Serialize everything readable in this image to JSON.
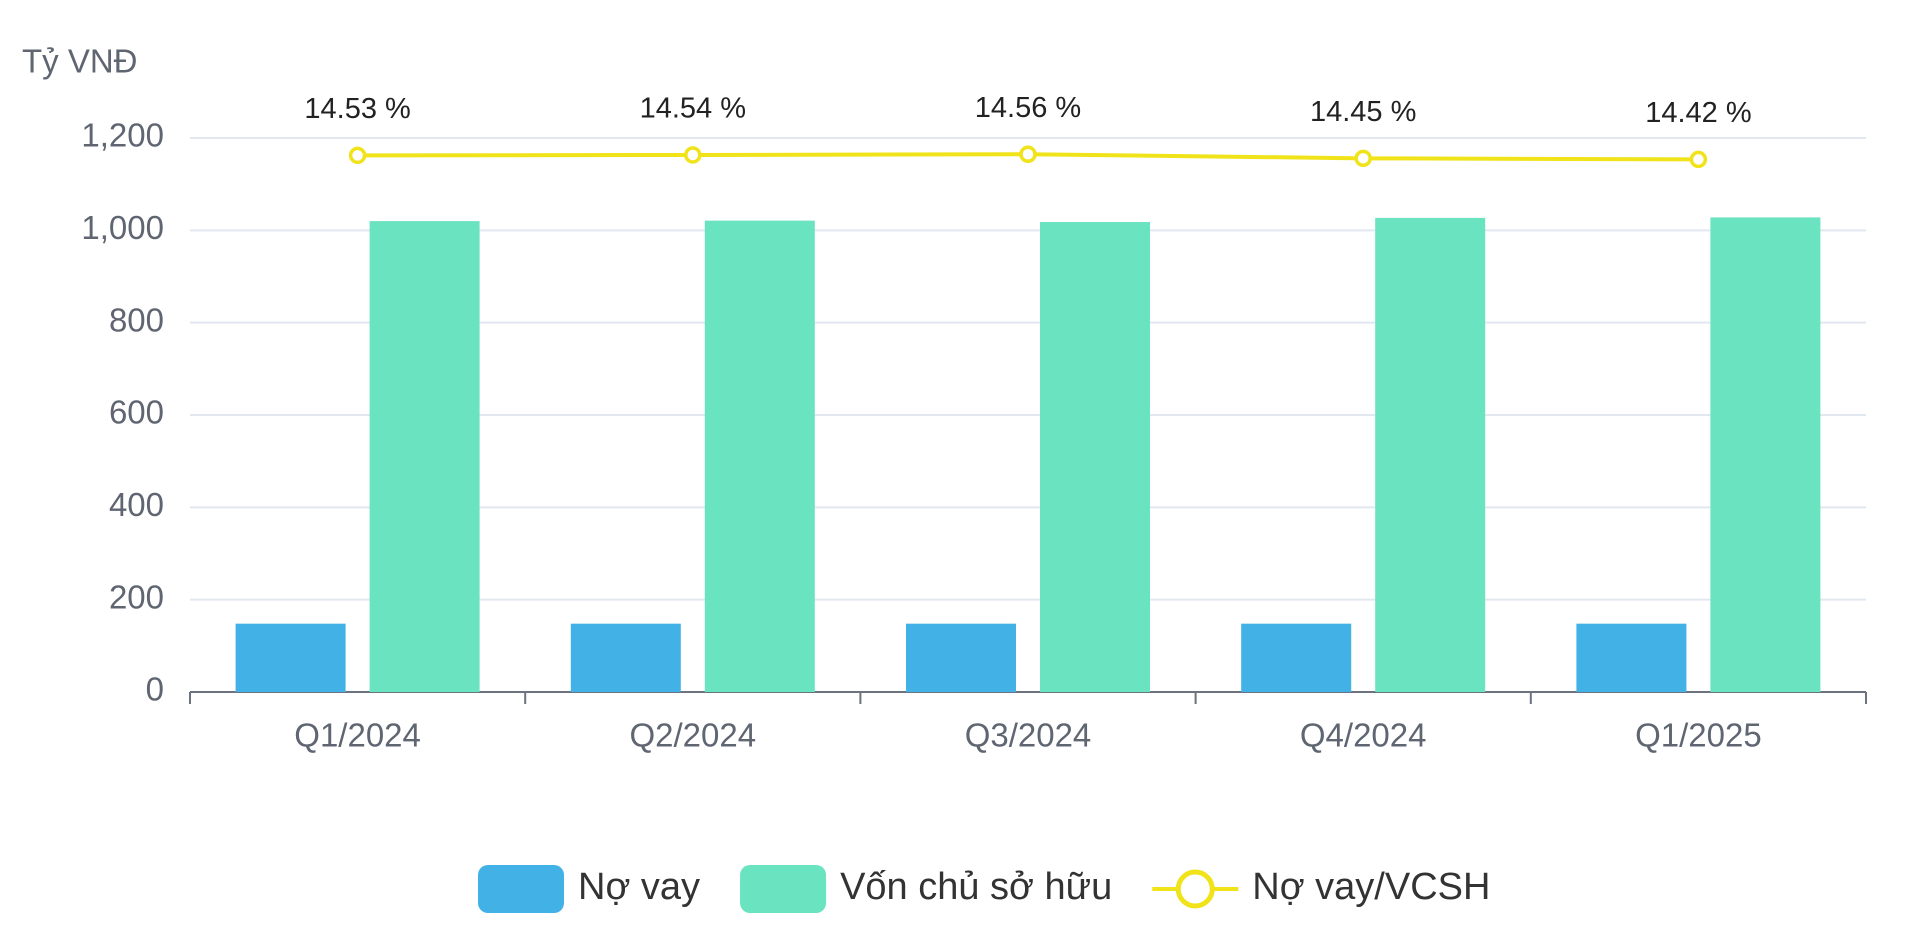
{
  "chart_data": {
    "type": "bar",
    "ylabel": "Tỷ VNĐ",
    "categories": [
      "Q1/2024",
      "Q2/2024",
      "Q3/2024",
      "Q4/2024",
      "Q1/2025"
    ],
    "series": [
      {
        "name": "Nợ vay",
        "type": "bar",
        "color": "#41b1e6",
        "values": [
          148,
          148,
          148,
          148,
          148
        ]
      },
      {
        "name": "Vốn chủ sở hữu",
        "type": "bar",
        "color": "#6ae3c0",
        "values": [
          1020,
          1021,
          1018,
          1027,
          1028
        ]
      },
      {
        "name": "Nợ vay/VCSH",
        "type": "line",
        "axis": "y2",
        "color": "#f0e31a",
        "values": [
          14.53,
          14.54,
          14.56,
          14.45,
          14.42
        ],
        "value_labels": [
          "14.53 %",
          "14.54 %",
          "14.56 %",
          "14.45 %",
          "14.42 %"
        ]
      }
    ],
    "ylim": [
      0,
      1200
    ],
    "yticks": [
      0,
      200,
      400,
      600,
      800,
      {
        "value": 1000,
        "label": "1,000"
      },
      {
        "value": 1200,
        "label": "1,200"
      }
    ],
    "y2lim": [
      0,
      15
    ],
    "grid": true,
    "legend": "bottom"
  }
}
